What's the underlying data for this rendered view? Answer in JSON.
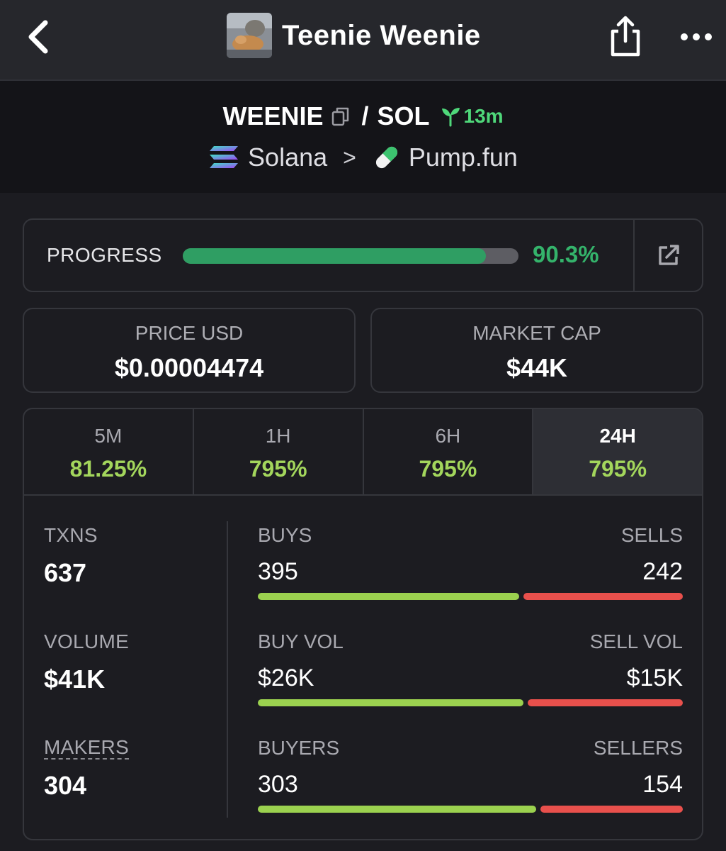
{
  "header": {
    "title": "Teenie Weenie",
    "icons": [
      "back-chevron-icon",
      "token-avatar-image",
      "share-icon",
      "more-icon"
    ]
  },
  "pair": {
    "base_symbol": "WEENIE",
    "separator": "/",
    "quote_symbol": "SOL",
    "age": "13m",
    "chain": "Solana",
    "dex": "Pump.fun",
    "chevron": ">"
  },
  "progress": {
    "label": "PROGRESS",
    "value_text": "90.3%",
    "fraction": 0.903
  },
  "stats": {
    "price_label": "PRICE USD",
    "price_value": "$0.00004474",
    "mcap_label": "MARKET CAP",
    "mcap_value": "$44K"
  },
  "timeframes": [
    {
      "name": "5M",
      "change": "81.25%"
    },
    {
      "name": "1H",
      "change": "795%"
    },
    {
      "name": "6H",
      "change": "795%"
    },
    {
      "name": "24H",
      "change": "795%",
      "active": true
    }
  ],
  "metrics": {
    "txns_label": "TXNS",
    "txns_value": "637",
    "volume_label": "VOLUME",
    "volume_value": "$41K",
    "makers_label": "MAKERS",
    "makers_value": "304"
  },
  "breakdown": {
    "buys_label": "BUYS",
    "sells_label": "SELLS",
    "buys_value": "395",
    "sells_value": "242",
    "buy_vol_label": "BUY VOL",
    "sell_vol_label": "SELL VOL",
    "buy_vol_value": "$26K",
    "sell_vol_value": "$15K",
    "buyers_label": "BUYERS",
    "sellers_label": "SELLERS",
    "buyers_value": "303",
    "sellers_value": "154",
    "buy_share_txns": 0.62,
    "buy_share_vol": 0.63,
    "buy_share_makers": 0.66
  },
  "colors": {
    "accent_green": "#34b36b",
    "change_green": "#a3d65c",
    "sell_red": "#e8504c"
  }
}
